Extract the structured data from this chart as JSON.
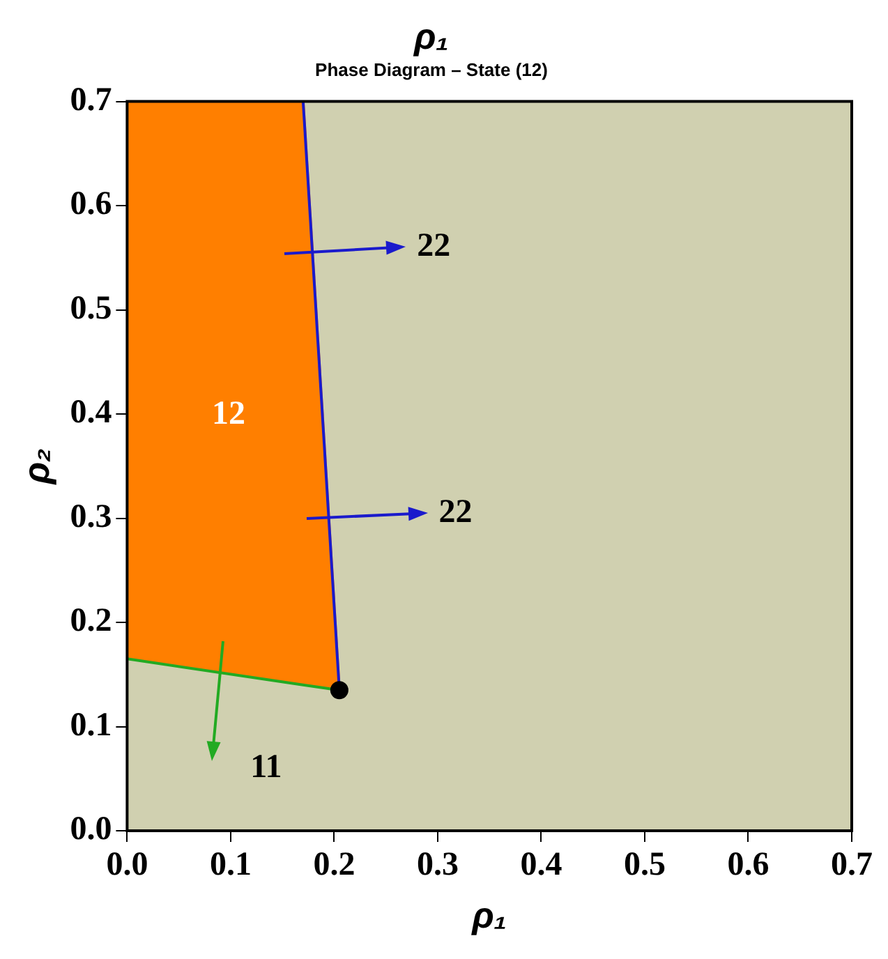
{
  "chart_data": {
    "type": "line",
    "title": "ρ₁",
    "subtitle": "Phase Diagram – State (12)",
    "xlabel": "ρ₁",
    "ylabel": "ρ₂",
    "xlim": [
      0,
      0.7
    ],
    "ylim": [
      0,
      0.7
    ],
    "xticks": [
      {
        "value": 0,
        "label": "0.0"
      },
      0.1,
      0.2,
      0.3,
      0.4,
      0.5,
      0.6,
      0.7
    ],
    "yticks": [
      {
        "value": 0,
        "label": "0.0"
      },
      0.1,
      0.2,
      0.3,
      0.4,
      0.5,
      0.6,
      0.7
    ],
    "grid": false,
    "legend": false,
    "series": [
      {
        "type": "area",
        "color": "#ff7f00",
        "x": [
          0,
          0.17,
          0.205
        ],
        "values": [
          0.7,
          0.7,
          0.135
        ]
      },
      {
        "type": "line",
        "color": "#1a1acc",
        "x": [
          0.17,
          0.205
        ],
        "values": [
          0.7,
          0.135
        ]
      },
      {
        "type": "line",
        "color": "#22aa22",
        "x": [
          0,
          0.17,
          0.205
        ],
        "values": [
          0.165,
          0.14,
          0.135
        ]
      },
      {
        "type": "scatter",
        "color": "#000000",
        "x": [
          0.205
        ],
        "values": [
          0.135
        ],
        "marker": "circle"
      }
    ],
    "annotations": [
      "22",
      "22",
      "11",
      "12"
    ]
  }
}
